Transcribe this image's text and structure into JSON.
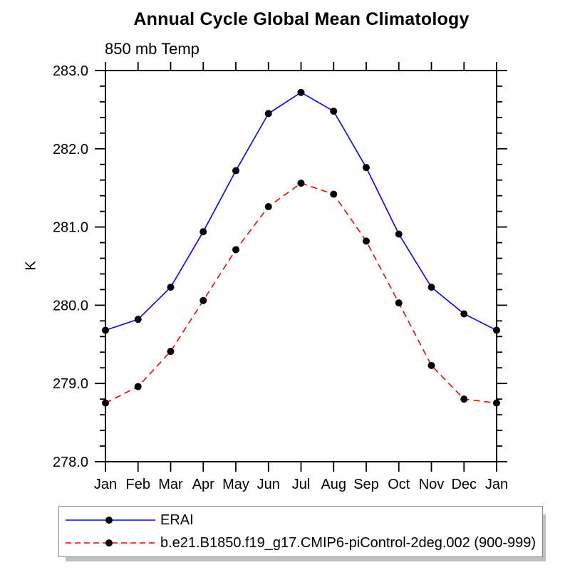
{
  "page": {
    "background_color": "#ffffff"
  },
  "chart_data": {
    "type": "line",
    "title": "Annual Cycle Global Mean Climatology",
    "subtitle": "850 mb Temp",
    "xlabel": "",
    "ylabel": "K",
    "ylim": [
      278.0,
      283.0
    ],
    "ytick_major_step": 1.0,
    "ytick_minor_step": 0.2,
    "ytick_labels": [
      "278.0",
      "279.0",
      "280.0",
      "281.0",
      "282.0",
      "283.0"
    ],
    "categories": [
      "Jan",
      "Feb",
      "Mar",
      "Apr",
      "May",
      "Jun",
      "Jul",
      "Aug",
      "Sep",
      "Oct",
      "Nov",
      "Dec",
      "Jan"
    ],
    "grid": false,
    "legend_position": "bottom-left",
    "axis_color": "#000000",
    "marker_shape": "filled-circle",
    "series": [
      {
        "name": "ERAI",
        "color": "#0000ff",
        "line_style": "solid",
        "marker_color": "#000000",
        "values": [
          279.68,
          279.82,
          280.23,
          280.94,
          281.72,
          282.45,
          282.72,
          282.48,
          281.76,
          280.91,
          280.23,
          279.89,
          279.68
        ]
      },
      {
        "name": "b.e21.B1850.f19_g17.CMIP6-piControl-2deg.002 (900-999)",
        "color": "#ff0000",
        "line_style": "dashed",
        "marker_color": "#000000",
        "values": [
          278.75,
          278.96,
          279.41,
          280.06,
          280.71,
          281.26,
          281.56,
          281.42,
          280.82,
          280.03,
          279.23,
          278.8,
          278.75
        ]
      }
    ]
  }
}
